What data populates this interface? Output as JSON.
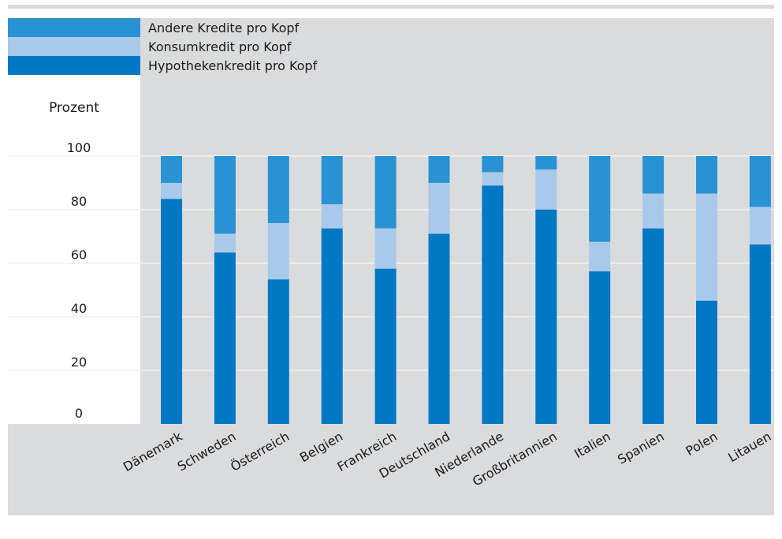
{
  "chart_data": {
    "type": "bar",
    "stacked": true,
    "ylabel": "Prozent",
    "ylim": [
      0,
      100
    ],
    "yticks": [
      0,
      20,
      40,
      60,
      80,
      100
    ],
    "grid": true,
    "legend_position": "top-left",
    "categories": [
      "Dänemark",
      "Schweden",
      "Österreich",
      "Belgien",
      "Frankreich",
      "Deutschland",
      "Niederlande",
      "Großbritannien",
      "Italien",
      "Spanien",
      "Polen",
      "Litauen"
    ],
    "series": [
      {
        "name": "Hypothekenkredit pro Kopf",
        "color": "#0078c3",
        "values": [
          84,
          64,
          54,
          73,
          58,
          71,
          89,
          80,
          57,
          73,
          46,
          67
        ]
      },
      {
        "name": "Konsumkredit pro Kopf",
        "color": "#a9c9ea",
        "values": [
          6,
          7,
          21,
          9,
          15,
          19,
          5,
          15,
          11,
          13,
          40,
          14
        ]
      },
      {
        "name": "Andere Kredite pro Kopf",
        "color": "#2a92d3",
        "values": [
          10,
          29,
          25,
          18,
          27,
          10,
          6,
          5,
          32,
          14,
          14,
          19
        ]
      }
    ],
    "legend_order": [
      "Andere Kredite pro Kopf",
      "Konsumkredit pro Kopf",
      "Hypothekenkredit pro Kopf"
    ]
  }
}
